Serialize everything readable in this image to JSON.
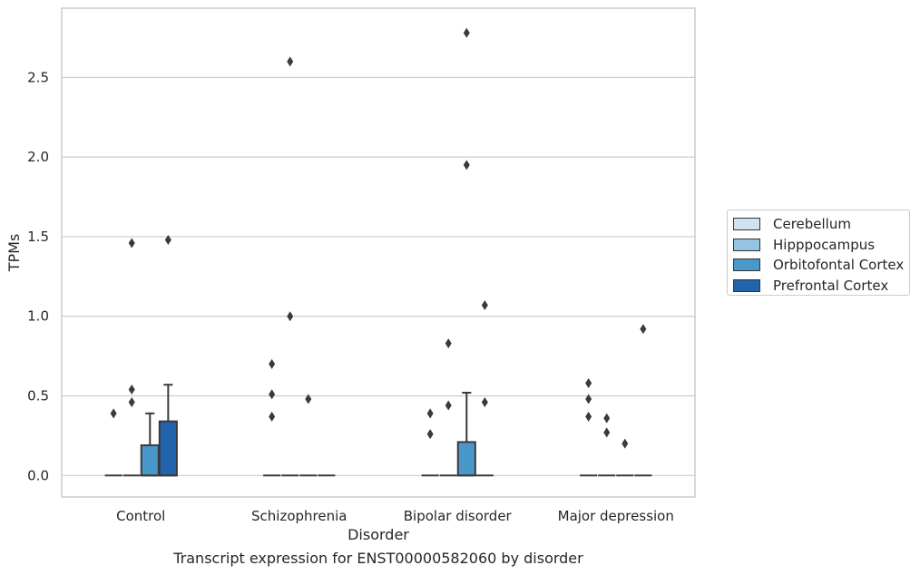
{
  "caption": "Transcript expression for ENST00000582060 by disorder",
  "chart_data": {
    "type": "box",
    "xlabel": "Disorder",
    "ylabel": "TPMs",
    "ylim": [
      -0.135,
      2.935
    ],
    "yticks": [
      0.0,
      0.5,
      1.0,
      1.5,
      2.0,
      2.5
    ],
    "ytick_labels": [
      "0.0",
      "0.5",
      "1.0",
      "1.5",
      "2.0",
      "2.5"
    ],
    "grid": "horizontal",
    "legend_position": "right",
    "categories": [
      "Control",
      "Schizophrenia",
      "Bipolar disorder",
      "Major depression"
    ],
    "series": [
      {
        "name": "Cerebellum",
        "color": "#d0e1f2",
        "boxes": [
          {
            "q1": 0,
            "median": 0,
            "q3": 0,
            "whisker_low": 0,
            "whisker_high": 0,
            "outliers": [
              0.39
            ]
          },
          {
            "q1": 0,
            "median": 0,
            "q3": 0,
            "whisker_low": 0,
            "whisker_high": 0,
            "outliers": [
              0.37,
              0.51,
              0.7
            ]
          },
          {
            "q1": 0,
            "median": 0,
            "q3": 0,
            "whisker_low": 0,
            "whisker_high": 0,
            "outliers": [
              0.26,
              0.39
            ]
          },
          {
            "q1": 0,
            "median": 0,
            "q3": 0,
            "whisker_low": 0,
            "whisker_high": 0,
            "outliers": [
              0.37,
              0.48,
              0.58
            ]
          }
        ]
      },
      {
        "name": "Hipppocampus",
        "color": "#94c4df",
        "boxes": [
          {
            "q1": 0,
            "median": 0,
            "q3": 0,
            "whisker_low": 0,
            "whisker_high": 0,
            "outliers": [
              0.46,
              0.54,
              1.46
            ]
          },
          {
            "q1": 0,
            "median": 0,
            "q3": 0,
            "whisker_low": 0,
            "whisker_high": 0,
            "outliers": [
              1.0,
              2.6
            ]
          },
          {
            "q1": 0,
            "median": 0,
            "q3": 0,
            "whisker_low": 0,
            "whisker_high": 0,
            "outliers": [
              0.44,
              0.83
            ]
          },
          {
            "q1": 0,
            "median": 0,
            "q3": 0,
            "whisker_low": 0,
            "whisker_high": 0,
            "outliers": [
              0.27,
              0.36
            ]
          }
        ]
      },
      {
        "name": "Orbitofontal Cortex",
        "color": "#4a98c9",
        "boxes": [
          {
            "q1": 0,
            "median": 0,
            "q3": 0.19,
            "whisker_low": 0,
            "whisker_high": 0.39,
            "outliers": []
          },
          {
            "q1": 0,
            "median": 0,
            "q3": 0,
            "whisker_low": 0,
            "whisker_high": 0,
            "outliers": [
              0.48
            ]
          },
          {
            "q1": 0,
            "median": 0,
            "q3": 0.21,
            "whisker_low": 0,
            "whisker_high": 0.52,
            "outliers": [
              1.95,
              2.78
            ]
          },
          {
            "q1": 0,
            "median": 0,
            "q3": 0,
            "whisker_low": 0,
            "whisker_high": 0,
            "outliers": [
              0.2
            ]
          }
        ]
      },
      {
        "name": "Prefrontal Cortex",
        "color": "#2164ab",
        "boxes": [
          {
            "q1": 0,
            "median": 0,
            "q3": 0.34,
            "whisker_low": 0,
            "whisker_high": 0.57,
            "outliers": [
              1.48
            ]
          },
          {
            "q1": 0,
            "median": 0,
            "q3": 0,
            "whisker_low": 0,
            "whisker_high": 0,
            "outliers": []
          },
          {
            "q1": 0,
            "median": 0,
            "q3": 0,
            "whisker_low": 0,
            "whisker_high": 0,
            "outliers": [
              0.46,
              1.07
            ]
          },
          {
            "q1": 0,
            "median": 0,
            "q3": 0,
            "whisker_low": 0,
            "whisker_high": 0,
            "outliers": [
              0.92
            ]
          }
        ]
      }
    ]
  }
}
